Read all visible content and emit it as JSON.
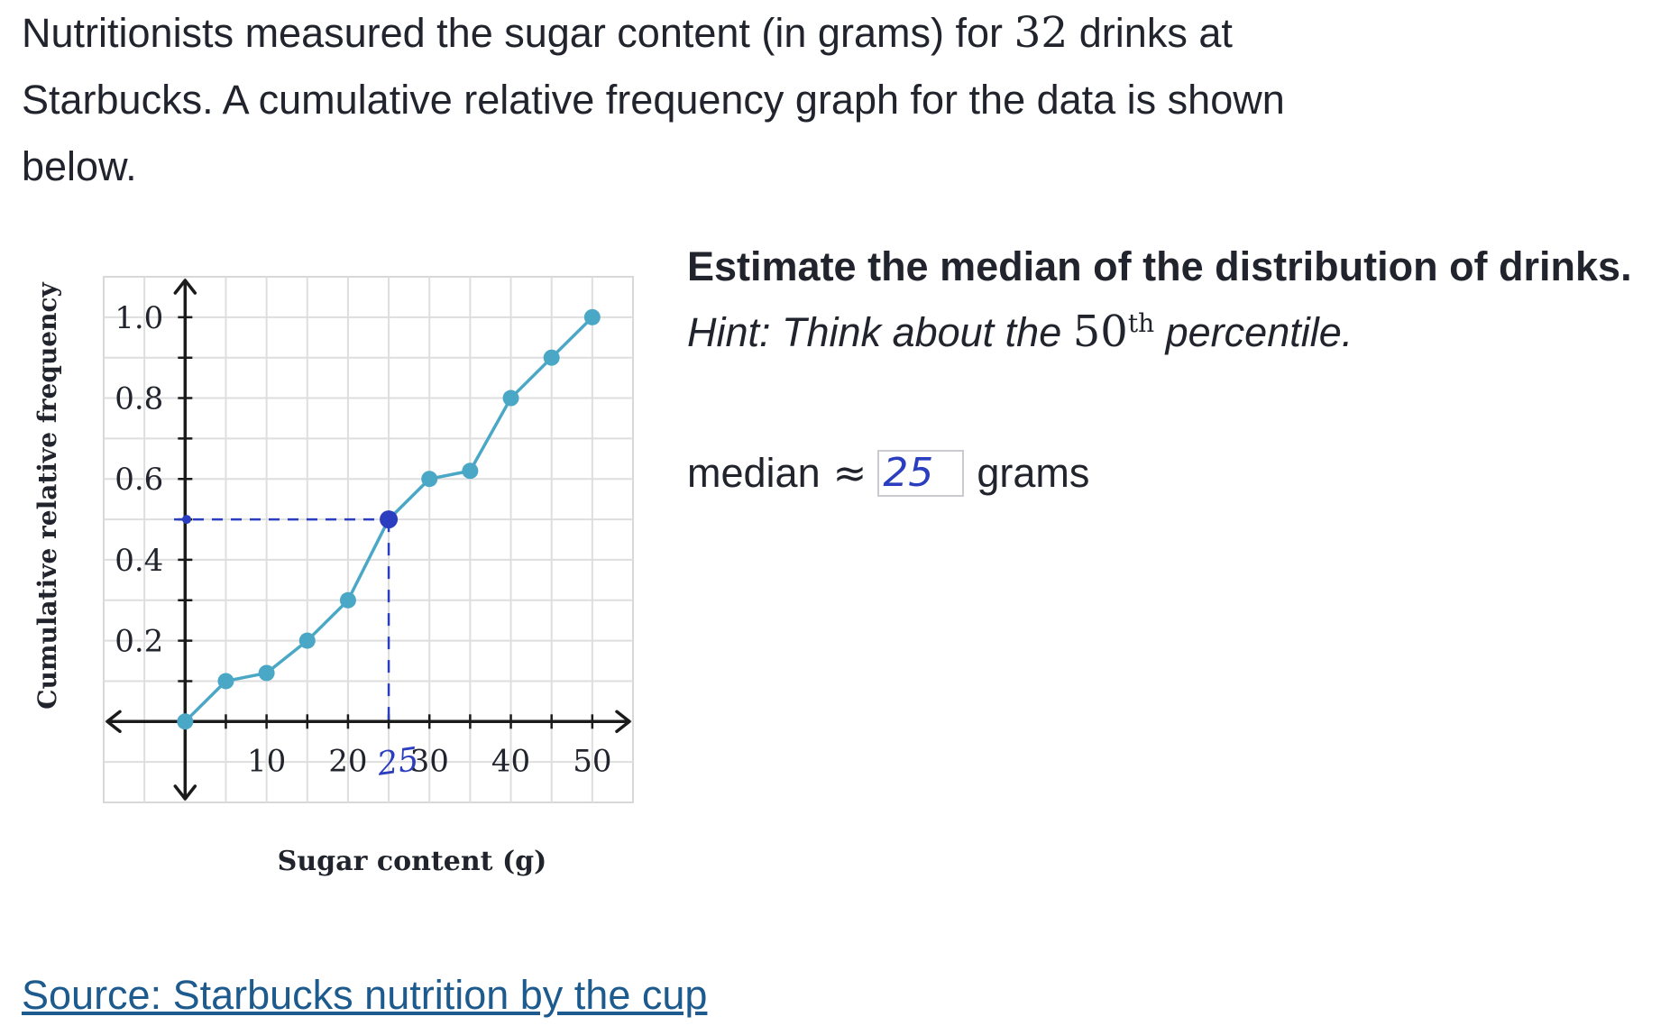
{
  "intro": {
    "before": "Nutritionists measured the sugar content (in grams) for ",
    "count": "32",
    "after": " drinks at Starbucks. A cumulative relative frequency graph for the data is shown below."
  },
  "question": "Estimate the median of the distribution of drinks.",
  "hint": {
    "before": "Hint: Think about the ",
    "number": "50",
    "superscript": "th",
    "after": " percentile."
  },
  "answer": {
    "label": "median",
    "symbol": "≈",
    "value": "25",
    "unit": "grams"
  },
  "source_link": "Source: Starbucks nutrition by the cup",
  "chart_data": {
    "type": "line",
    "xlabel": "Sugar content (g)",
    "ylabel": "Cumulative relative frequency",
    "xlim": [
      -10,
      55
    ],
    "ylim": [
      -0.2,
      1.1
    ],
    "x_ticks": [
      10,
      20,
      30,
      40,
      50
    ],
    "y_ticks": [
      0.2,
      0.4,
      0.6,
      0.8,
      1.0
    ],
    "y_tick_labels": [
      "0.2",
      "0.4",
      "0.6",
      "0.8",
      "1.0"
    ],
    "grid": true,
    "series": [
      {
        "color": "#4aa8c6",
        "x": [
          0,
          5,
          10,
          15,
          20,
          25,
          30,
          35,
          40,
          45,
          50
        ],
        "y": [
          0,
          0.1,
          0.12,
          0.2,
          0.3,
          0.5,
          0.6,
          0.62,
          0.8,
          0.9,
          1.0
        ]
      }
    ],
    "annotation": {
      "color": "#2a3ebf",
      "point": [
        25,
        0.5
      ],
      "handwritten_label": "25"
    }
  }
}
